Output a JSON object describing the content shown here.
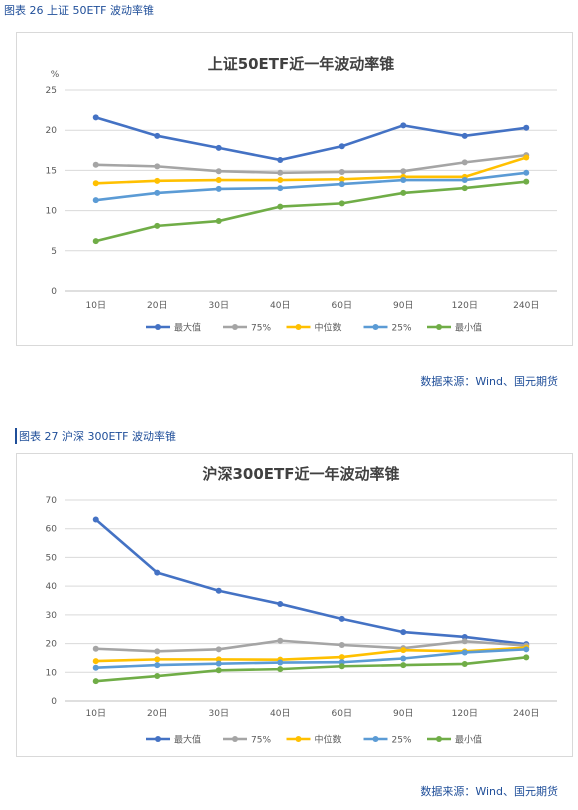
{
  "figures": [
    {
      "caption": "图表 26  上证 50ETF 波动率锥",
      "source": "数据来源：Wind、国元期货"
    },
    {
      "caption": "图表 27  沪深 300ETF 波动率锥",
      "source": "数据来源：Wind、国元期货"
    }
  ],
  "chart_data": [
    {
      "type": "line",
      "title": "上证50ETF近一年波动率锥",
      "ylabel": "%",
      "categories": [
        "10日",
        "20日",
        "30日",
        "40日",
        "60日",
        "90日",
        "120日",
        "240日"
      ],
      "ylim": [
        0,
        25
      ],
      "yticks": [
        0,
        5,
        10,
        15,
        20,
        25
      ],
      "grid": true,
      "legend": "bottom",
      "series": [
        {
          "name": "最大值",
          "color": "#4472c4",
          "values": [
            21.6,
            19.3,
            17.8,
            16.3,
            18.0,
            20.6,
            19.3,
            20.3
          ]
        },
        {
          "name": "75%",
          "color": "#a5a5a5",
          "values": [
            15.7,
            15.5,
            14.9,
            14.7,
            14.8,
            14.9,
            16.0,
            16.9
          ]
        },
        {
          "name": "中位数",
          "color": "#ffc000",
          "values": [
            13.4,
            13.7,
            13.8,
            13.8,
            13.9,
            14.2,
            14.2,
            16.6
          ]
        },
        {
          "name": "25%",
          "color": "#5b9bd5",
          "values": [
            11.3,
            12.2,
            12.7,
            12.8,
            13.3,
            13.8,
            13.8,
            14.7
          ]
        },
        {
          "name": "最小值",
          "color": "#70ad47",
          "values": [
            6.2,
            8.1,
            8.7,
            10.5,
            10.9,
            12.2,
            12.8,
            13.6
          ]
        }
      ]
    },
    {
      "type": "line",
      "title": "沪深300ETF近一年波动率锥",
      "ylabel": "",
      "categories": [
        "10日",
        "20日",
        "30日",
        "40日",
        "60日",
        "90日",
        "120日",
        "240日"
      ],
      "ylim": [
        0,
        70
      ],
      "yticks": [
        0,
        10,
        20,
        30,
        40,
        50,
        60,
        70
      ],
      "grid": true,
      "legend": "bottom",
      "series": [
        {
          "name": "最大值",
          "color": "#4472c4",
          "values": [
            63.2,
            44.7,
            38.4,
            33.8,
            28.6,
            24.0,
            22.3,
            19.8
          ]
        },
        {
          "name": "75%",
          "color": "#a5a5a5",
          "values": [
            18.2,
            17.3,
            18.0,
            21.0,
            19.5,
            18.4,
            20.8,
            19.3
          ]
        },
        {
          "name": "中位数",
          "color": "#ffc000",
          "values": [
            13.9,
            14.5,
            14.5,
            14.4,
            15.3,
            17.7,
            17.3,
            18.6
          ]
        },
        {
          "name": "25%",
          "color": "#5b9bd5",
          "values": [
            11.6,
            12.5,
            13.0,
            13.4,
            13.5,
            14.8,
            16.9,
            18.0
          ]
        },
        {
          "name": "最小值",
          "color": "#70ad47",
          "values": [
            6.9,
            8.7,
            10.7,
            11.1,
            12.1,
            12.5,
            12.9,
            15.2
          ]
        }
      ]
    }
  ]
}
